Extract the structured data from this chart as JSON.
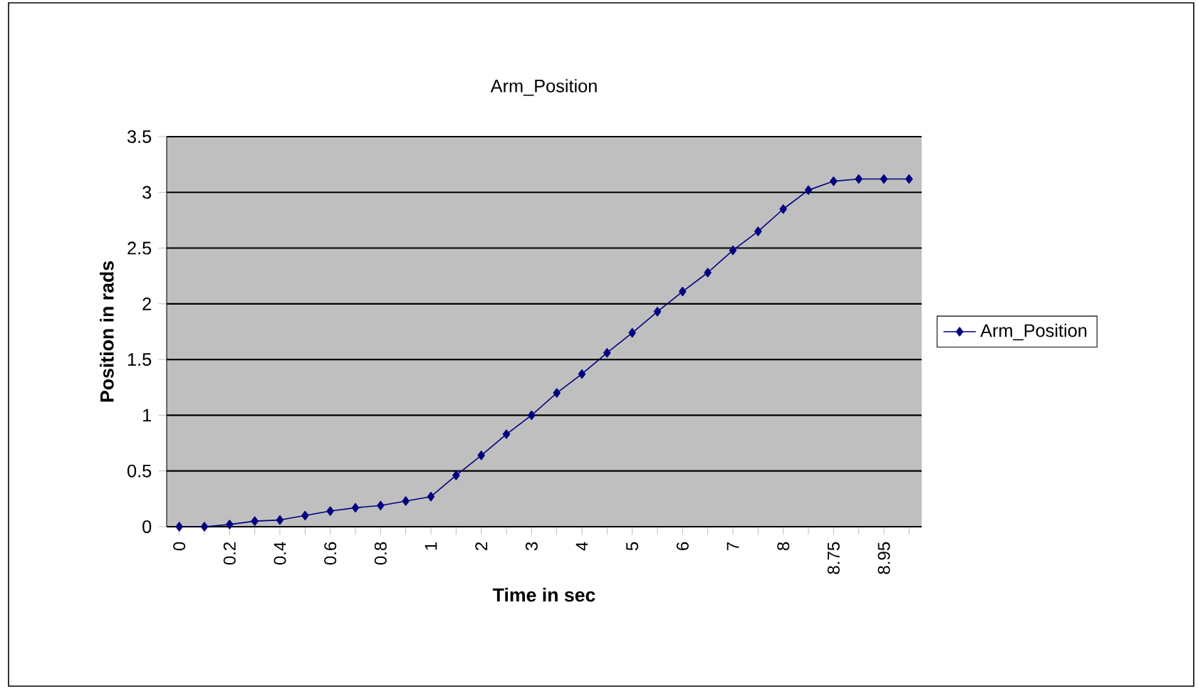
{
  "chart_data": {
    "type": "line",
    "title": "Arm_Position",
    "xlabel": "Time in sec",
    "ylabel": "Position in rads",
    "categories": [
      "0",
      null,
      "0.2",
      null,
      "0.4",
      null,
      "0.6",
      null,
      "0.8",
      null,
      "1",
      null,
      "2",
      null,
      "3",
      null,
      "4",
      null,
      "5",
      null,
      "6",
      null,
      "7",
      null,
      "8",
      null,
      "8.75",
      null,
      "8.95",
      null
    ],
    "series": [
      {
        "name": "Arm_Position",
        "color": "#000080",
        "values": [
          0,
          0,
          0.02,
          0.05,
          0.06,
          0.1,
          0.14,
          0.17,
          0.19,
          0.23,
          0.27,
          0.46,
          0.64,
          0.83,
          1.0,
          1.2,
          1.37,
          1.56,
          1.74,
          1.93,
          2.11,
          2.28,
          2.48,
          2.65,
          2.85,
          3.02,
          3.1,
          3.12,
          3.12,
          3.12
        ]
      }
    ],
    "ylim": [
      0,
      3.5
    ],
    "yticks": [
      0,
      0.5,
      1,
      1.5,
      2,
      2.5,
      3,
      3.5
    ],
    "grid": "y",
    "legend": "right",
    "marker": "diamond",
    "line_style": "solid"
  }
}
